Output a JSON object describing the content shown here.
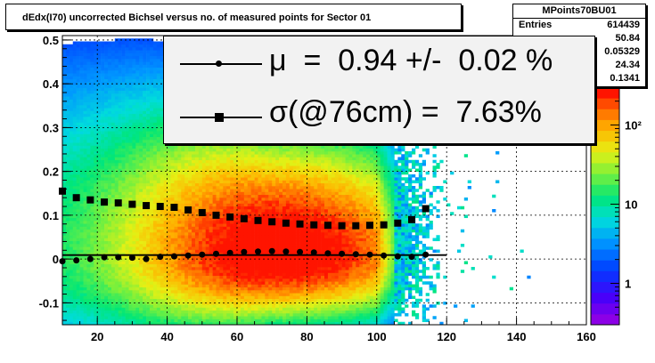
{
  "title": "dEdx(I70) uncorrected Bichsel versus no. of measured points for Sector 01",
  "stats": {
    "name": "MPoints70BU01",
    "rows": [
      {
        "label": "Entries",
        "value": "614439"
      },
      {
        "label": "",
        "value": "50.84"
      },
      {
        "label": "",
        "value": "0.05329"
      },
      {
        "label": "",
        "value": "24.34"
      },
      {
        "label": "",
        "value": "0.1341"
      }
    ]
  },
  "fit": {
    "mu_text": "μ  =  0.94 +/-  0.02 %",
    "sigma_text": "σ(@76cm) =  7.63%"
  },
  "colors": {
    "mean_profile": "#000000",
    "sigma_profile": "#000000"
  },
  "chart_data": {
    "type": "heatmap",
    "xlim": [
      10,
      160
    ],
    "ylim": [
      -0.15,
      0.51
    ],
    "x_ticks": [
      20,
      40,
      60,
      80,
      100,
      120,
      140,
      160
    ],
    "y_ticks": [
      -0.1,
      0,
      0.1,
      0.2,
      0.3,
      0.4,
      0.5
    ],
    "y_tick_labels": [
      "-0.1",
      "0",
      "0.1",
      "0.2",
      "0.3",
      "0.4",
      "0.5"
    ],
    "colorbar": {
      "ticks": [
        1,
        10,
        100
      ],
      "tick_labels": [
        "1",
        "10",
        "10²"
      ],
      "scale": "log",
      "range": [
        0.3,
        300
      ]
    },
    "grid": true,
    "mean_profile": {
      "x": [
        10,
        14,
        18,
        22,
        26,
        30,
        34,
        38,
        42,
        46,
        50,
        54,
        58,
        62,
        66,
        70,
        74,
        78,
        82,
        86,
        90,
        94,
        98,
        102,
        106,
        110,
        114
      ],
      "y": [
        -0.005,
        -0.003,
        0.0,
        0.004,
        0.004,
        0.003,
        0.0,
        0.005,
        0.006,
        0.008,
        0.01,
        0.012,
        0.014,
        0.016,
        0.017,
        0.018,
        0.017,
        0.016,
        0.015,
        0.013,
        0.012,
        0.011,
        0.01,
        0.008,
        0.006,
        0.005,
        0.01
      ]
    },
    "sigma_profile": {
      "x": [
        10,
        14,
        18,
        22,
        26,
        30,
        34,
        38,
        42,
        46,
        50,
        54,
        58,
        62,
        66,
        70,
        74,
        78,
        82,
        86,
        90,
        94,
        98,
        102,
        106,
        110,
        114
      ],
      "y": [
        0.155,
        0.14,
        0.135,
        0.13,
        0.128,
        0.125,
        0.122,
        0.12,
        0.118,
        0.112,
        0.106,
        0.1,
        0.096,
        0.092,
        0.088,
        0.085,
        0.082,
        0.08,
        0.078,
        0.077,
        0.076,
        0.076,
        0.077,
        0.078,
        0.082,
        0.09,
        0.115
      ]
    },
    "mean_fit_line": {
      "x": [
        10,
        120
      ],
      "y": [
        0.009,
        0.009
      ]
    }
  }
}
